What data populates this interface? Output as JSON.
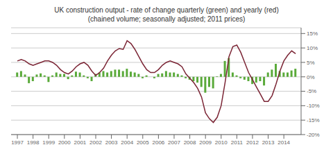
{
  "chart_data": {
    "type": "bar",
    "title": "UK construction output - rate of change quarterly (green) and yearly (red)",
    "subtitle": "(chained volume; seasonally adjusted; 2011 prices)",
    "x": [
      1997.0,
      1997.25,
      1997.5,
      1997.75,
      1998.0,
      1998.25,
      1998.5,
      1998.75,
      1999.0,
      1999.25,
      1999.5,
      1999.75,
      2000.0,
      2000.25,
      2000.5,
      2000.75,
      2001.0,
      2001.25,
      2001.5,
      2001.75,
      2002.0,
      2002.25,
      2002.5,
      2002.75,
      2003.0,
      2003.25,
      2003.5,
      2003.75,
      2004.0,
      2004.25,
      2004.5,
      2004.75,
      2005.0,
      2005.25,
      2005.5,
      2005.75,
      2006.0,
      2006.25,
      2006.5,
      2006.75,
      2007.0,
      2007.25,
      2007.5,
      2007.75,
      2008.0,
      2008.25,
      2008.5,
      2008.75,
      2009.0,
      2009.25,
      2009.5,
      2009.75,
      2010.0,
      2010.25,
      2010.5,
      2010.75,
      2011.0,
      2011.25,
      2011.5,
      2011.75,
      2012.0,
      2012.25,
      2012.5,
      2012.75,
      2013.0,
      2013.25,
      2013.5,
      2013.75,
      2014.0,
      2014.25,
      2014.5,
      2014.75
    ],
    "series": [
      {
        "type": "bar",
        "color": "#5aaa3a",
        "values": [
          1.5,
          2.0,
          0.8,
          -2.2,
          -1.5,
          0.8,
          1.2,
          0.5,
          -1.8,
          0.5,
          1.5,
          1.0,
          1.0,
          -0.8,
          0.5,
          1.8,
          1.5,
          0.5,
          -0.5,
          -1.5,
          1.0,
          1.5,
          2.0,
          1.5,
          2.0,
          2.5,
          2.5,
          2.0,
          2.8,
          1.8,
          1.5,
          1.0,
          -0.5,
          0.5,
          0.0,
          -0.5,
          1.0,
          1.2,
          2.0,
          1.5,
          1.5,
          1.0,
          0.5,
          -0.5,
          -1.0,
          -1.5,
          -2.0,
          -3.5,
          -5.5,
          -3.5,
          -4.0,
          0.2,
          1.0,
          5.5,
          6.5,
          1.5,
          0.5,
          -0.5,
          -1.0,
          -1.5,
          -2.5,
          -2.0,
          -1.5,
          -3.0,
          1.5,
          2.5,
          4.5,
          2.0,
          1.5,
          1.5,
          2.2,
          2.8
        ]
      },
      {
        "type": "line",
        "color": "#7b2535",
        "values": [
          5.5,
          6.0,
          5.5,
          4.5,
          4.0,
          4.5,
          5.0,
          5.5,
          5.5,
          5.0,
          4.0,
          2.5,
          1.5,
          1.0,
          2.0,
          3.5,
          4.5,
          5.0,
          4.0,
          2.0,
          0.5,
          1.5,
          3.0,
          5.5,
          7.5,
          9.0,
          9.8,
          9.5,
          12.5,
          11.5,
          9.5,
          7.0,
          4.5,
          2.5,
          1.5,
          1.5,
          2.5,
          4.0,
          5.0,
          5.5,
          5.0,
          4.5,
          3.5,
          1.0,
          -0.5,
          -2.0,
          -4.0,
          -7.0,
          -12.5,
          -14.5,
          -15.8,
          -14.0,
          -10.0,
          -2.0,
          7.0,
          10.5,
          11.0,
          8.5,
          5.0,
          1.5,
          -1.0,
          -3.5,
          -6.0,
          -8.5,
          -8.5,
          -6.5,
          -2.5,
          2.0,
          5.5,
          7.5,
          9.0,
          8.0
        ]
      }
    ],
    "xlim": [
      1996.6,
      2015.1
    ],
    "xticks": [
      1997,
      1998,
      1999,
      2000,
      2001,
      2002,
      2003,
      2004,
      2005,
      2006,
      2007,
      2008,
      2009,
      2010,
      2011,
      2012,
      2013,
      2014
    ],
    "ylim": [
      -20,
      17
    ],
    "yticks": [
      {
        "value": -20,
        "label": "-20%"
      },
      {
        "value": -15,
        "label": "-15%"
      },
      {
        "value": -10,
        "label": "-10%"
      },
      {
        "value": -5,
        "label": "-5%"
      },
      {
        "value": 0,
        "label": "0%"
      },
      {
        "value": 5,
        "label": "5%"
      },
      {
        "value": 10,
        "label": "10%"
      },
      {
        "value": 15,
        "label": "15%"
      }
    ],
    "grid": true
  }
}
